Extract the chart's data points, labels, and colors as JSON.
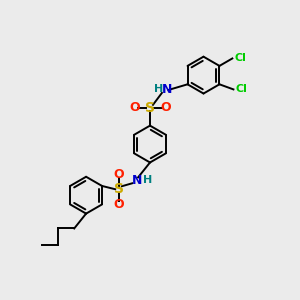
{
  "background_color": "#ebebeb",
  "figsize": [
    3.0,
    3.0
  ],
  "dpi": 100,
  "colors": {
    "C": "#000000",
    "N": "#0000cd",
    "O": "#ff2000",
    "S": "#ccaa00",
    "Cl": "#00cc00",
    "H": "#008080",
    "bond": "#000000"
  },
  "bond_lw": 1.4,
  "doffset": 0.055,
  "ring_r": 0.62,
  "xlim": [
    0,
    10
  ],
  "ylim": [
    0,
    10
  ]
}
